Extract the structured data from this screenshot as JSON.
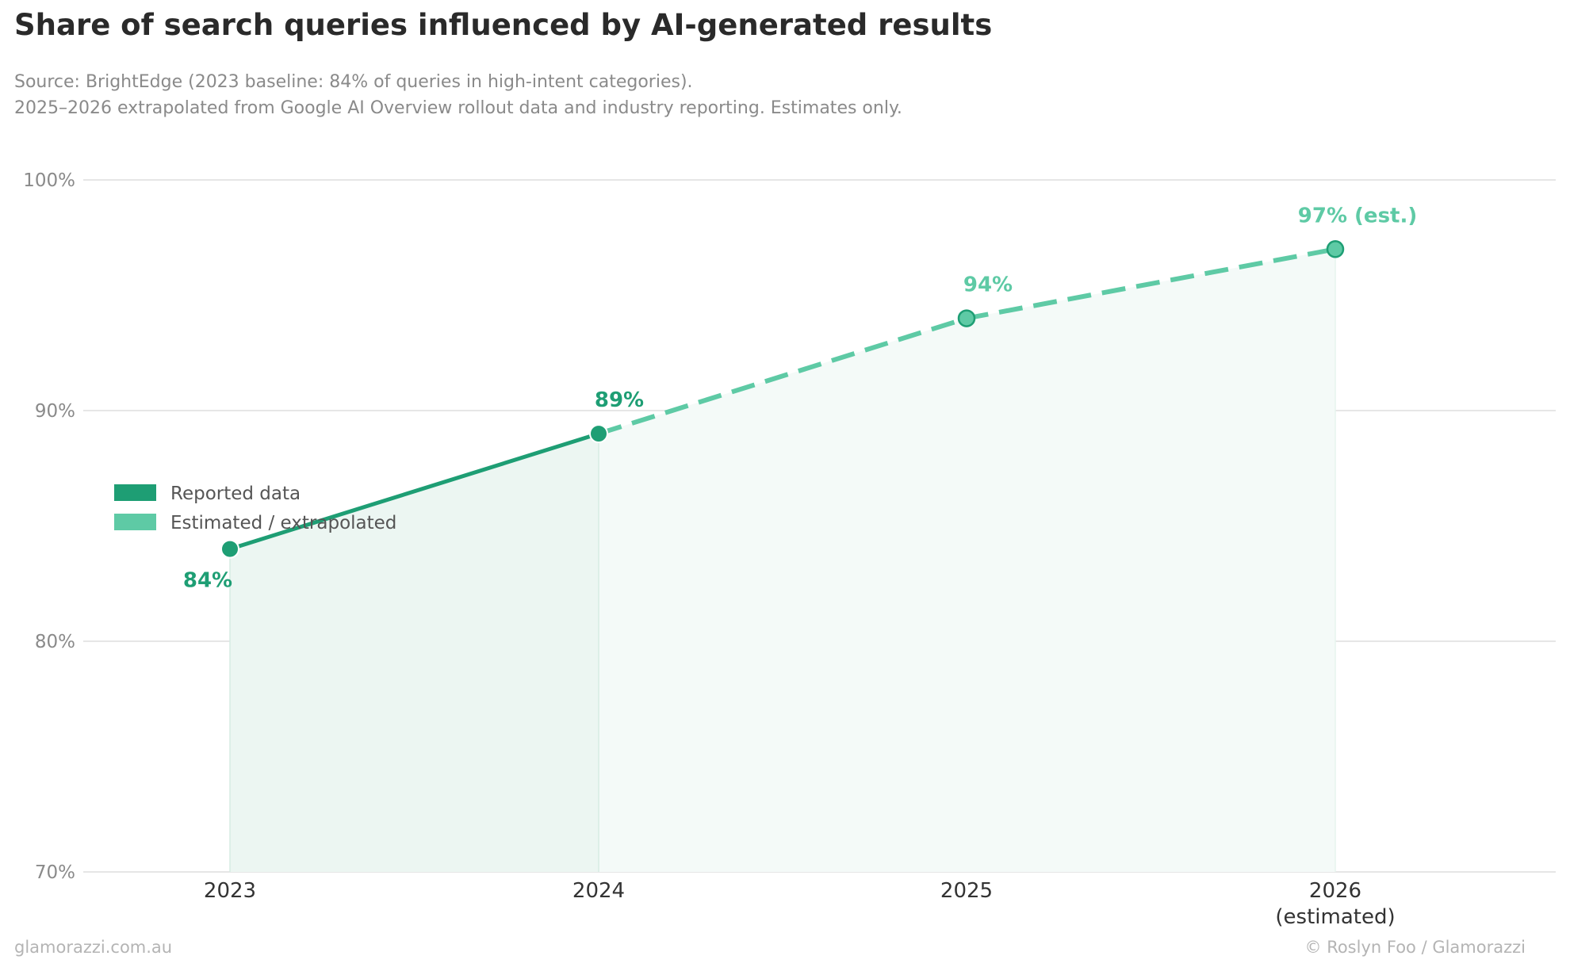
{
  "header": {
    "title": "Share of search queries influenced by AI-generated results",
    "subtitle_line1": "Source: BrightEdge (2023 baseline: 84% of queries in high-intent categories).",
    "subtitle_line2": "2025–2026 extrapolated from Google AI Overview rollout data and industry reporting. Estimates only."
  },
  "footer": {
    "left": "glamorazzi.com.au",
    "right": "© Roslyn Foo / Glamorazzi"
  },
  "colors": {
    "reported": "#1e9e74",
    "estimated": "#5ecaa5",
    "grid": "#dddddd",
    "reported_fill": "#ecf6f2",
    "estimated_fill": "#f4faf8"
  },
  "chart_data": {
    "type": "line",
    "x": [
      "2023",
      "2024",
      "2025",
      "2026"
    ],
    "x_tick_labels": [
      "2023",
      "2024",
      "2025",
      "2026\n(estimated)"
    ],
    "values": [
      84,
      89,
      94,
      97
    ],
    "data_labels": [
      "84%",
      "89%",
      "94%",
      "97% (est.)"
    ],
    "series": [
      {
        "name": "Reported data",
        "x": [
          "2023",
          "2024"
        ],
        "values": [
          84,
          89
        ],
        "style": "solid"
      },
      {
        "name": "Estimated / extrapolated",
        "x": [
          "2024",
          "2025",
          "2026"
        ],
        "values": [
          89,
          94,
          97
        ],
        "style": "dashed"
      }
    ],
    "ylim": [
      70,
      100
    ],
    "yticks": [
      70,
      80,
      90,
      100
    ],
    "ytick_labels": [
      "70%",
      "80%",
      "90%",
      "100%"
    ],
    "grid": true,
    "legend_position": "middle-left"
  }
}
